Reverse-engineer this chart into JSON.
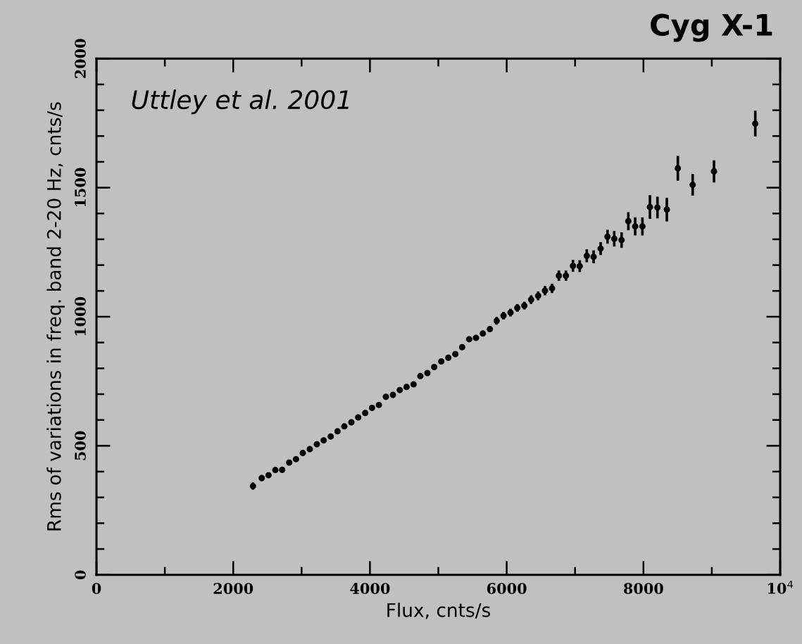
{
  "chart_data": {
    "type": "scatter",
    "title": "Cyg X-1",
    "xlabel": "Flux, cnts/s",
    "ylabel": "Rms of variations in freq. band 2-20 Hz, cnts/s",
    "annotations": [
      "Uttley et al. 2001"
    ],
    "x": [
      2289,
      2417,
      2516,
      2616,
      2716,
      2818,
      2918,
      3018,
      3120,
      3223,
      3323,
      3426,
      3525,
      3625,
      3728,
      3828,
      3931,
      4030,
      4130,
      4233,
      4336,
      4436,
      4535,
      4638,
      4737,
      4840,
      4940,
      5043,
      5146,
      5249,
      5348,
      5451,
      5551,
      5651,
      5754,
      5853,
      5953,
      6056,
      6155,
      6258,
      6357,
      6460,
      6560,
      6663,
      6763,
      6866,
      6969,
      7068,
      7171,
      7271,
      7374,
      7474,
      7573,
      7680,
      7779,
      7879,
      7985,
      8095,
      8205,
      8342,
      8503,
      8720,
      9032,
      9636
    ],
    "values": [
      344,
      375,
      386,
      406,
      407,
      435,
      448,
      472,
      487,
      506,
      521,
      536,
      556,
      575,
      591,
      610,
      627,
      647,
      658,
      690,
      697,
      716,
      728,
      738,
      770,
      782,
      805,
      827,
      841,
      855,
      882,
      913,
      918,
      935,
      952,
      984,
      1004,
      1016,
      1034,
      1043,
      1066,
      1081,
      1101,
      1110,
      1159,
      1159,
      1197,
      1196,
      1236,
      1232,
      1264,
      1310,
      1302,
      1297,
      1370,
      1350,
      1350,
      1425,
      1423,
      1415,
      1575,
      1511,
      1563,
      1748
    ],
    "errors": [
      14,
      12,
      10,
      null,
      null,
      null,
      null,
      null,
      null,
      null,
      null,
      null,
      null,
      null,
      null,
      null,
      null,
      null,
      null,
      null,
      null,
      null,
      null,
      null,
      null,
      null,
      null,
      null,
      null,
      null,
      null,
      null,
      null,
      null,
      null,
      15,
      15,
      15,
      15,
      15,
      17,
      17,
      18,
      18,
      20,
      20,
      23,
      23,
      25,
      25,
      25,
      27,
      30,
      30,
      35,
      35,
      35,
      46,
      42,
      46,
      48,
      42,
      43,
      50
    ],
    "color": "#000000",
    "marker": "circle",
    "xlim": [
      0,
      10000
    ],
    "xticks": [
      0,
      {
        "value": 1000,
        "label": null
      },
      2000,
      {
        "value": 3000,
        "label": null
      },
      4000,
      {
        "value": 5000,
        "label": null
      },
      6000,
      {
        "value": 7000,
        "label": null
      },
      8000,
      {
        "value": 9000,
        "label": null
      },
      {
        "value": 10000,
        "label": "10$^{4}$"
      }
    ],
    "ylim": [
      0,
      2000
    ],
    "yticks": [
      0,
      {
        "value": 100,
        "label": null
      },
      {
        "value": 200,
        "label": null
      },
      {
        "value": 300,
        "label": null
      },
      {
        "value": 400,
        "label": null
      },
      500,
      {
        "value": 600,
        "label": null
      },
      {
        "value": 700,
        "label": null
      },
      {
        "value": 800,
        "label": null
      },
      {
        "value": 900,
        "label": null
      },
      1000,
      {
        "value": 1100,
        "label": null
      },
      {
        "value": 1200,
        "label": null
      },
      {
        "value": 1300,
        "label": null
      },
      {
        "value": 1400,
        "label": null
      },
      1500,
      {
        "value": 1600,
        "label": null
      },
      {
        "value": 1700,
        "label": null
      },
      {
        "value": 1800,
        "label": null
      },
      {
        "value": 1900,
        "label": null
      },
      2000
    ],
    "grid": false
  }
}
